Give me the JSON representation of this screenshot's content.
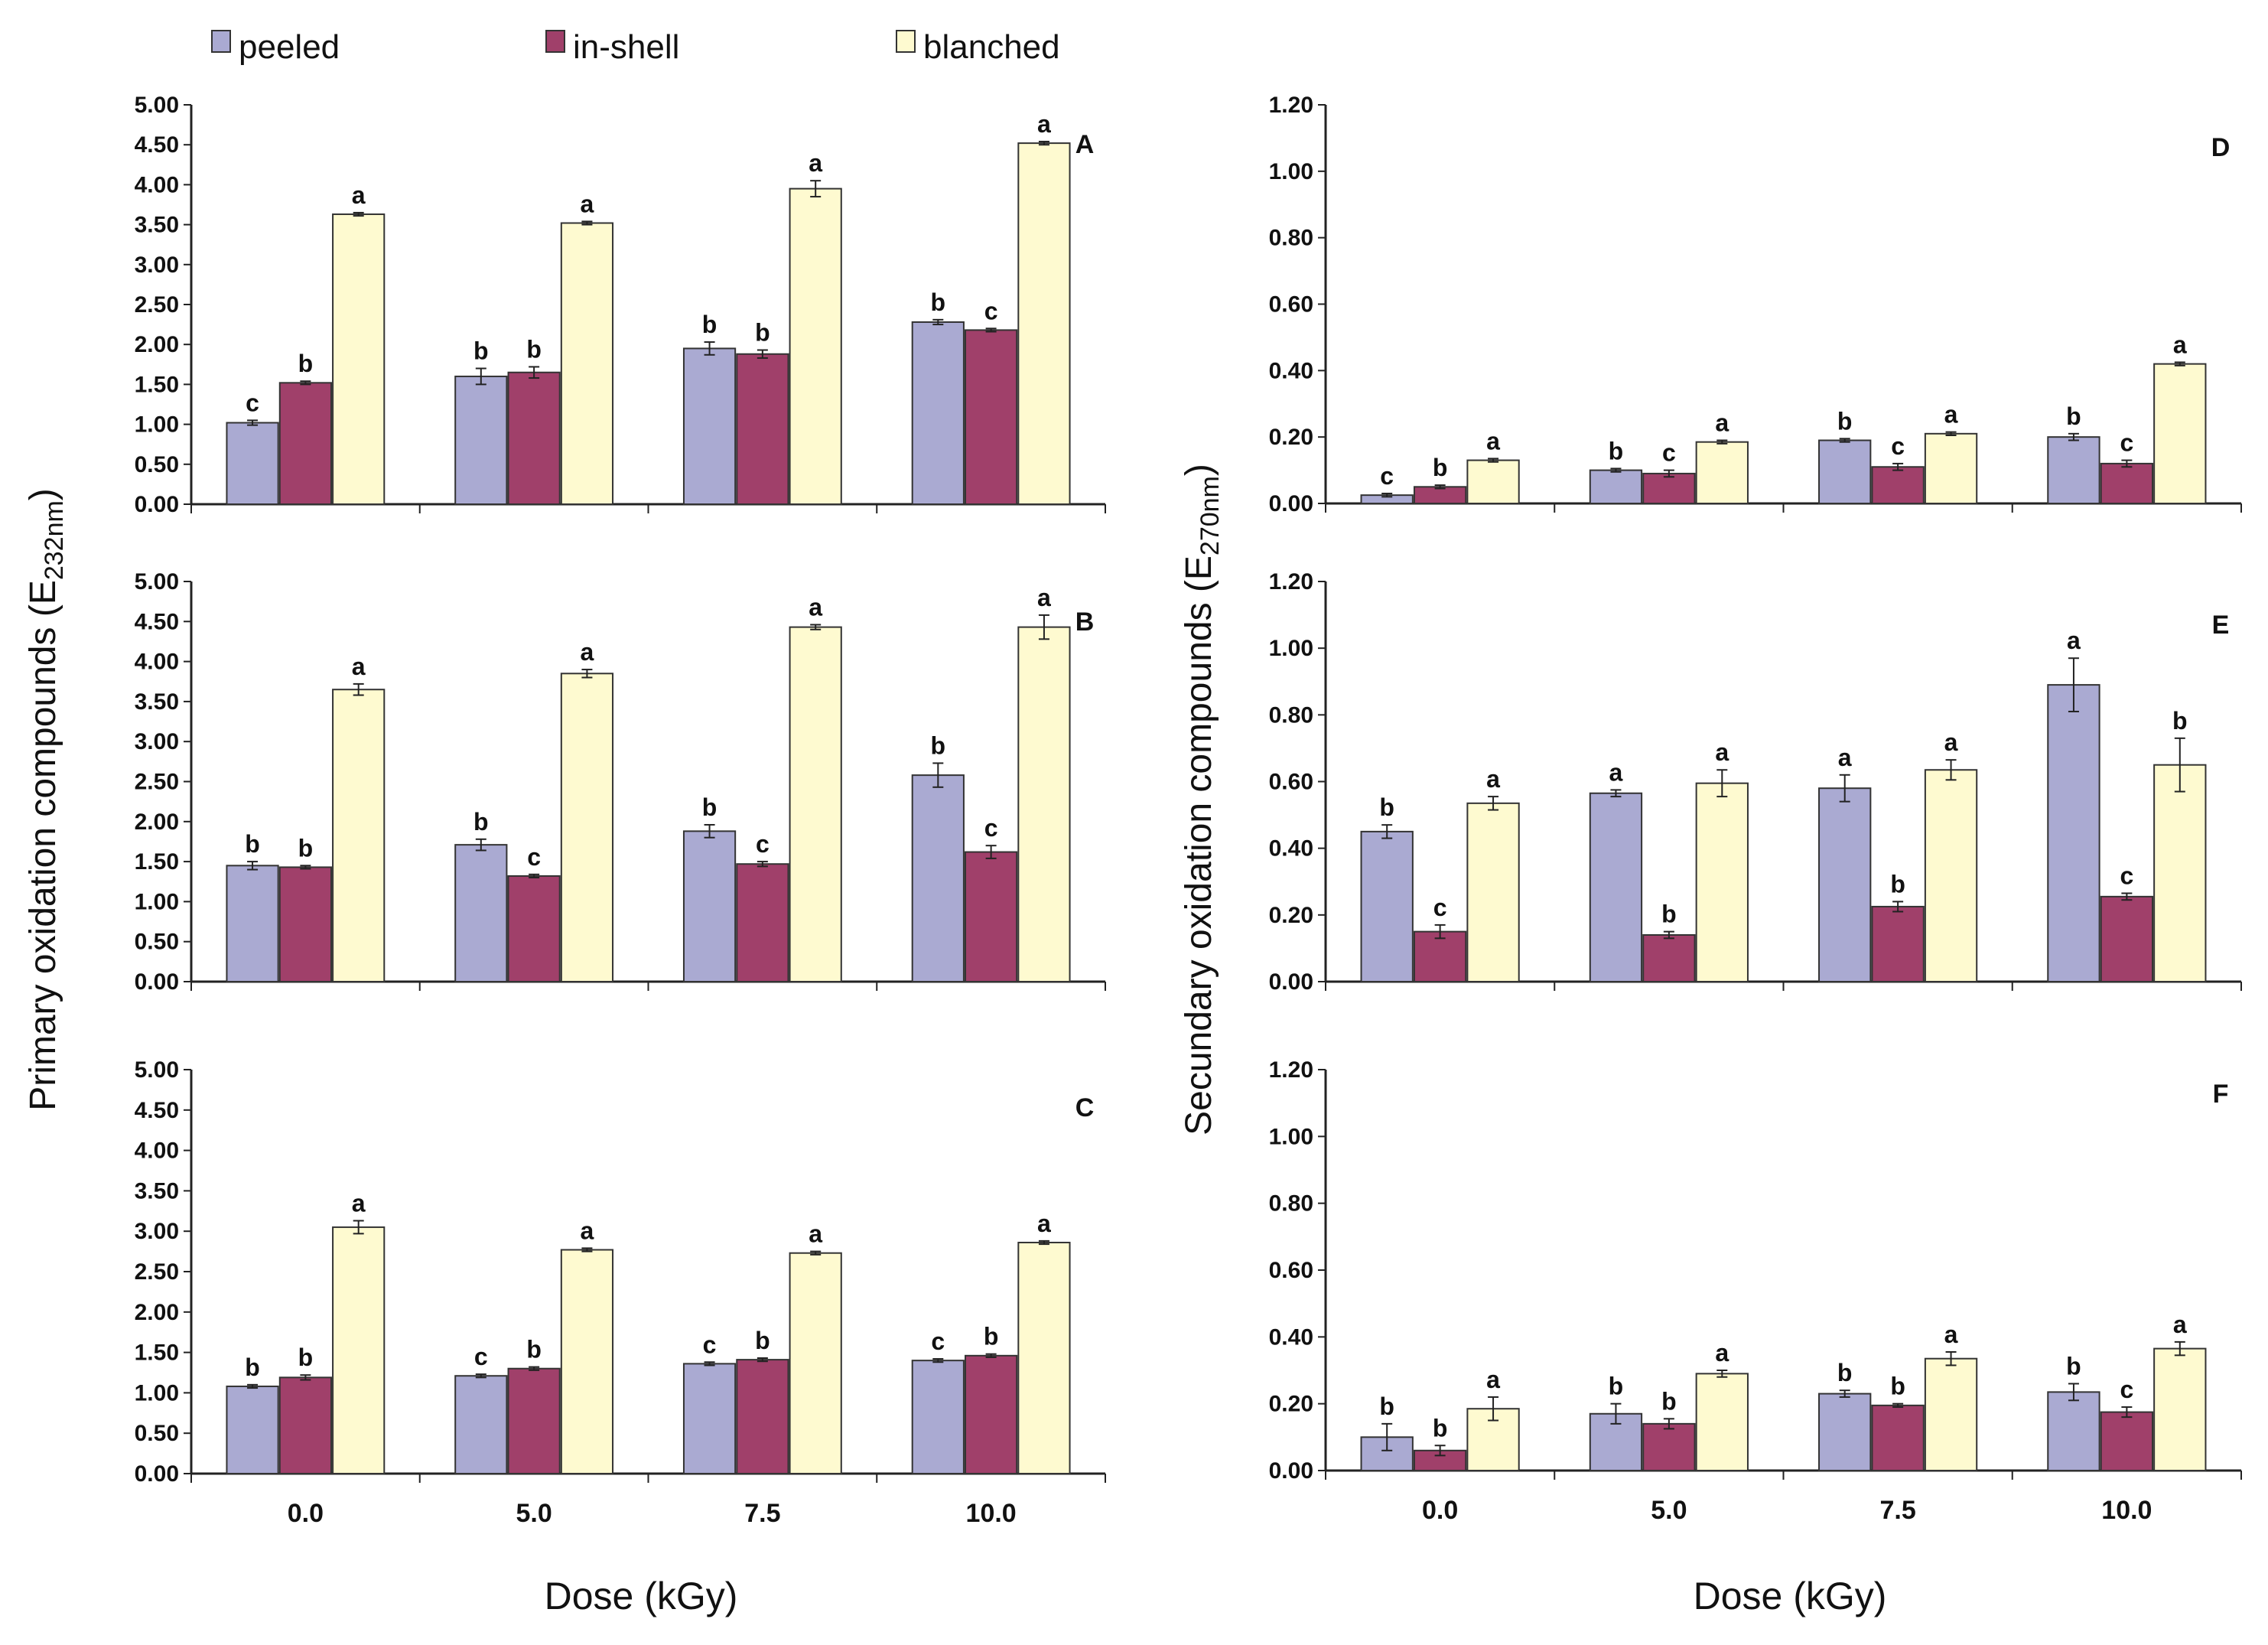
{
  "legend": [
    {
      "name": "peeled",
      "color": "#aaaad2"
    },
    {
      "name": "in-shell",
      "color": "#a0406a"
    },
    {
      "name": "blanched",
      "color": "#fefad0"
    }
  ],
  "axis_labels": {
    "left_y": "Primary oxidation compounds (E",
    "left_y_sub": "232nm",
    "left_y_end": ")",
    "right_y": "Secundary oxidation compounds (E",
    "right_y_sub": "270nm",
    "right_y_end": ")",
    "left_x": "Dose (kGy)",
    "right_x": "Dose (kGy)"
  },
  "chart_data": [
    {
      "panel": "A",
      "type": "bar",
      "categories": [
        "0.0",
        "5.0",
        "7.5",
        "10.0"
      ],
      "ylim": [
        0,
        5
      ],
      "yticks": [
        "0.00",
        "0.50",
        "1.00",
        "1.50",
        "2.00",
        "2.50",
        "3.00",
        "3.50",
        "4.00",
        "4.50",
        "5.00"
      ],
      "series": [
        {
          "name": "peeled",
          "values": [
            1.02,
            1.6,
            1.95,
            2.28
          ],
          "errors": [
            0.03,
            0.1,
            0.08,
            0.03
          ],
          "letters": [
            "c",
            "b",
            "b",
            "b"
          ]
        },
        {
          "name": "in-shell",
          "values": [
            1.52,
            1.65,
            1.88,
            2.18
          ],
          "errors": [
            0.02,
            0.07,
            0.05,
            0.02
          ],
          "letters": [
            "b",
            "b",
            "b",
            "c"
          ]
        },
        {
          "name": "blanched",
          "values": [
            3.63,
            3.52,
            3.95,
            4.52
          ],
          "errors": [
            0.02,
            0.02,
            0.1,
            0.02
          ],
          "letters": [
            "a",
            "a",
            "a",
            "a"
          ]
        }
      ]
    },
    {
      "panel": "B",
      "type": "bar",
      "categories": [
        "0.0",
        "5.0",
        "7.5",
        "10.0"
      ],
      "ylim": [
        0,
        5
      ],
      "yticks": [
        "0.00",
        "0.50",
        "1.00",
        "1.50",
        "2.00",
        "2.50",
        "3.00",
        "3.50",
        "4.00",
        "4.50",
        "5.00"
      ],
      "series": [
        {
          "name": "peeled",
          "values": [
            1.45,
            1.71,
            1.88,
            2.58
          ],
          "errors": [
            0.05,
            0.07,
            0.08,
            0.15
          ],
          "letters": [
            "b",
            "b",
            "b",
            "b"
          ]
        },
        {
          "name": "in-shell",
          "values": [
            1.43,
            1.32,
            1.47,
            1.62
          ],
          "errors": [
            0.02,
            0.02,
            0.03,
            0.08
          ],
          "letters": [
            "b",
            "c",
            "c",
            "c"
          ]
        },
        {
          "name": "blanched",
          "values": [
            3.65,
            3.85,
            4.43,
            4.43
          ],
          "errors": [
            0.07,
            0.05,
            0.03,
            0.15
          ],
          "letters": [
            "a",
            "a",
            "a",
            "a"
          ]
        }
      ]
    },
    {
      "panel": "C",
      "type": "bar",
      "categories": [
        "0.0",
        "5.0",
        "7.5",
        "10.0"
      ],
      "ylim": [
        0,
        5
      ],
      "yticks": [
        "0.00",
        "0.50",
        "1.00",
        "1.50",
        "2.00",
        "2.50",
        "3.00",
        "3.50",
        "4.00",
        "4.50",
        "5.00"
      ],
      "series": [
        {
          "name": "peeled",
          "values": [
            1.08,
            1.21,
            1.36,
            1.4
          ],
          "errors": [
            0.02,
            0.02,
            0.02,
            0.02
          ],
          "letters": [
            "b",
            "c",
            "c",
            "c"
          ]
        },
        {
          "name": "in-shell",
          "values": [
            1.19,
            1.3,
            1.41,
            1.46
          ],
          "errors": [
            0.03,
            0.02,
            0.02,
            0.02
          ],
          "letters": [
            "b",
            "b",
            "b",
            "b"
          ]
        },
        {
          "name": "blanched",
          "values": [
            3.05,
            2.77,
            2.73,
            2.86
          ],
          "errors": [
            0.08,
            0.02,
            0.02,
            0.02
          ],
          "letters": [
            "a",
            "a",
            "a",
            "a"
          ]
        }
      ]
    },
    {
      "panel": "D",
      "type": "bar",
      "categories": [
        "0.0",
        "5.0",
        "7.5",
        "10.0"
      ],
      "ylim": [
        0,
        1.2
      ],
      "yticks": [
        "0.00",
        "0.20",
        "0.40",
        "0.60",
        "0.80",
        "1.00",
        "1.20"
      ],
      "series": [
        {
          "name": "peeled",
          "values": [
            0.025,
            0.1,
            0.19,
            0.2
          ],
          "errors": [
            0.005,
            0.005,
            0.005,
            0.01
          ],
          "letters": [
            "c",
            "b",
            "b",
            "b"
          ]
        },
        {
          "name": "in-shell",
          "values": [
            0.05,
            0.09,
            0.11,
            0.12
          ],
          "errors": [
            0.005,
            0.01,
            0.01,
            0.01
          ],
          "letters": [
            "b",
            "c",
            "c",
            "c"
          ]
        },
        {
          "name": "blanched",
          "values": [
            0.13,
            0.185,
            0.21,
            0.42
          ],
          "errors": [
            0.005,
            0.005,
            0.005,
            0.005
          ],
          "letters": [
            "a",
            "a",
            "a",
            "a"
          ]
        }
      ]
    },
    {
      "panel": "E",
      "type": "bar",
      "categories": [
        "0.0",
        "5.0",
        "7.5",
        "10.0"
      ],
      "ylim": [
        0,
        1.2
      ],
      "yticks": [
        "0.00",
        "0.20",
        "0.40",
        "0.60",
        "0.80",
        "1.00",
        "1.20"
      ],
      "series": [
        {
          "name": "peeled",
          "values": [
            0.45,
            0.565,
            0.58,
            0.89
          ],
          "errors": [
            0.02,
            0.01,
            0.04,
            0.08
          ],
          "letters": [
            "b",
            "a",
            "a",
            "a"
          ]
        },
        {
          "name": "in-shell",
          "values": [
            0.15,
            0.14,
            0.225,
            0.255
          ],
          "errors": [
            0.02,
            0.01,
            0.015,
            0.01
          ],
          "letters": [
            "c",
            "b",
            "b",
            "c"
          ]
        },
        {
          "name": "blanched",
          "values": [
            0.535,
            0.595,
            0.635,
            0.65
          ],
          "errors": [
            0.02,
            0.04,
            0.03,
            0.08
          ],
          "letters": [
            "a",
            "a",
            "a",
            "b"
          ]
        }
      ]
    },
    {
      "panel": "F",
      "type": "bar",
      "categories": [
        "0.0",
        "5.0",
        "7.5",
        "10.0"
      ],
      "ylim": [
        0,
        1.2
      ],
      "yticks": [
        "0.00",
        "0.20",
        "0.40",
        "0.60",
        "0.80",
        "1.00",
        "1.20"
      ],
      "series": [
        {
          "name": "peeled",
          "values": [
            0.1,
            0.17,
            0.23,
            0.235
          ],
          "errors": [
            0.04,
            0.03,
            0.01,
            0.025
          ],
          "letters": [
            "b",
            "b",
            "b",
            "b"
          ]
        },
        {
          "name": "in-shell",
          "values": [
            0.06,
            0.14,
            0.195,
            0.175
          ],
          "errors": [
            0.015,
            0.015,
            0.005,
            0.015
          ],
          "letters": [
            "b",
            "b",
            "b",
            "c"
          ]
        },
        {
          "name": "blanched",
          "values": [
            0.185,
            0.29,
            0.335,
            0.365
          ],
          "errors": [
            0.035,
            0.01,
            0.02,
            0.02
          ],
          "letters": [
            "a",
            "a",
            "a",
            "a"
          ]
        }
      ]
    }
  ]
}
